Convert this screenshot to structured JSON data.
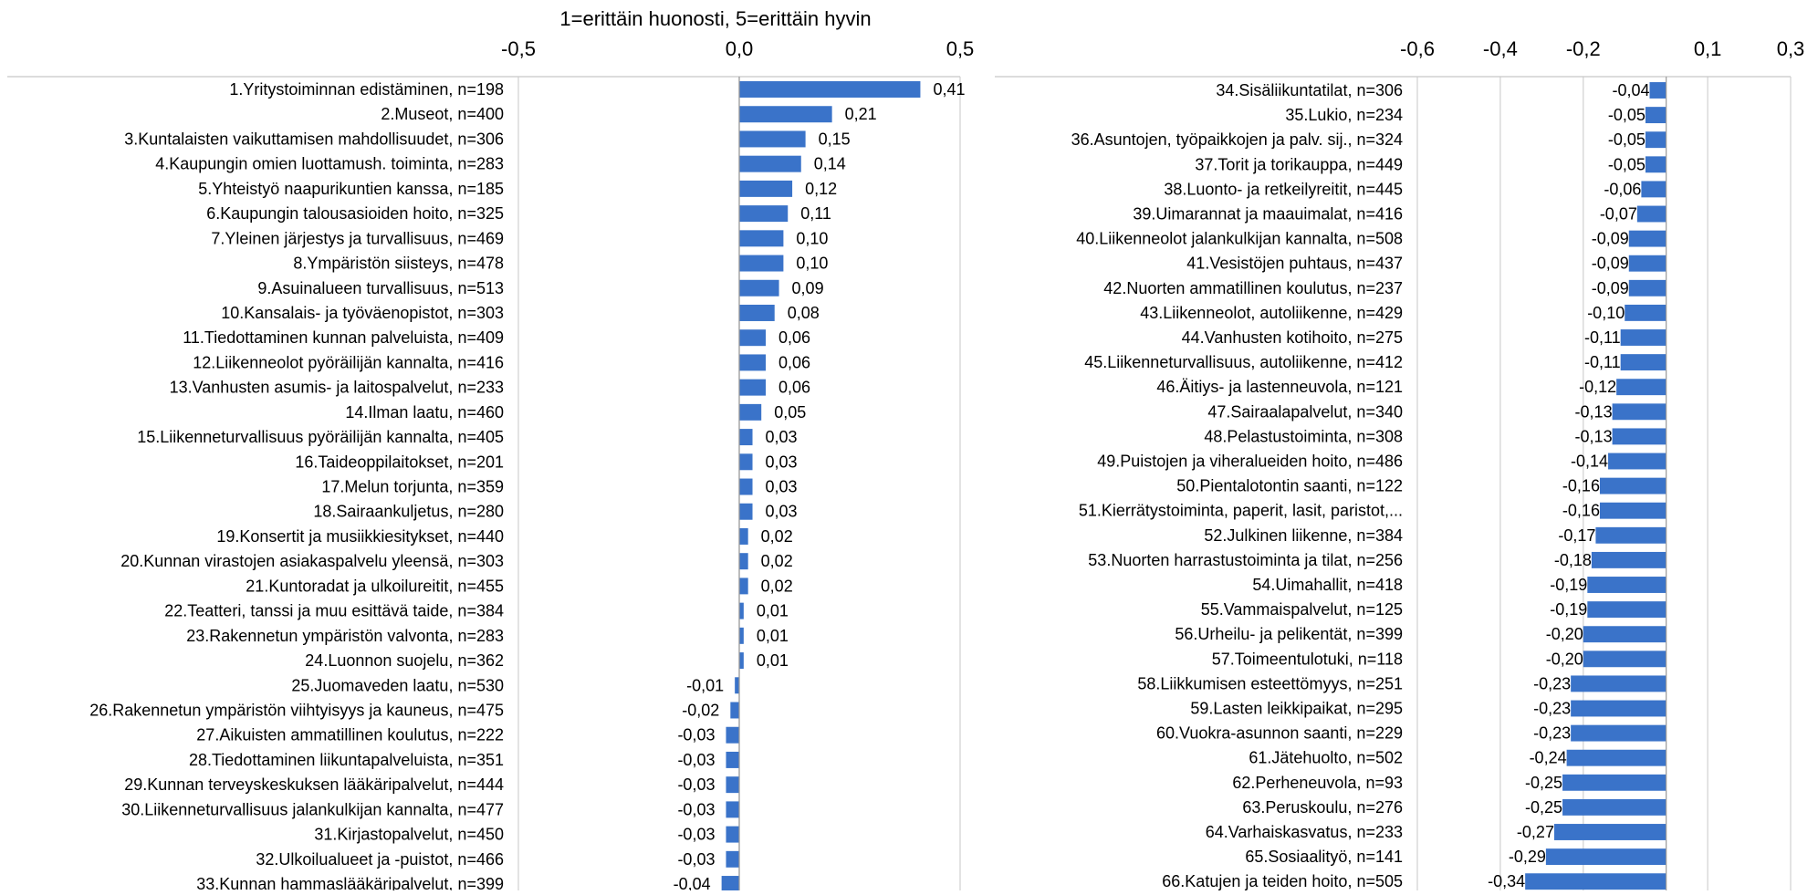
{
  "chart_data": [
    {
      "type": "bar",
      "orientation": "horizontal",
      "title": "1=erittäin huonosti, 5=erittäin hyvin",
      "xlim": [
        -0.5,
        0.5
      ],
      "ticks": [
        -0.5,
        0.0,
        0.5
      ],
      "tick_labels": [
        "-0,5",
        "0,0",
        "0,5"
      ],
      "grid": "vertical",
      "bar_color": "#3a73c9",
      "categories": [
        "1.Yritystoiminnan edistäminen, n=198",
        "2.Museot, n=400",
        "3.Kuntalaisten vaikuttamisen mahdollisuudet, n=306",
        "4.Kaupungin omien luottamush. toiminta, n=283",
        "5.Yhteistyö naapurikuntien kanssa, n=185",
        "6.Kaupungin talousasioiden hoito, n=325",
        "7.Yleinen järjestys ja turvallisuus, n=469",
        "8.Ympäristön siisteys, n=478",
        "9.Asuinalueen turvallisuus, n=513",
        "10.Kansalais- ja työväenopistot, n=303",
        "11.Tiedottaminen kunnan palveluista, n=409",
        "12.Liikenneolot pyöräilijän kannalta, n=416",
        "13.Vanhusten asumis- ja laitospalvelut, n=233",
        "14.Ilman laatu, n=460",
        "15.Liikenneturvallisuus pyöräilijän kannalta, n=405",
        "16.Taideoppilaitokset, n=201",
        "17.Melun torjunta, n=359",
        "18.Sairaankuljetus, n=280",
        "19.Konsertit ja musiikkiesitykset, n=440",
        "20.Kunnan virastojen asiakaspalvelu yleensä, n=303",
        "21.Kuntoradat ja ulkoilureitit, n=455",
        "22.Teatteri, tanssi ja muu esittävä taide, n=384",
        "23.Rakennetun ympäristön valvonta, n=283",
        "24.Luonnon suojelu, n=362",
        "25.Juomaveden laatu, n=530",
        "26.Rakennetun ympäristön viihtyisyys ja kauneus, n=475",
        "27.Aikuisten ammatillinen koulutus, n=222",
        "28.Tiedottaminen liikuntapalveluista, n=351",
        "29.Kunnan terveyskeskuksen lääkäripalvelut, n=444",
        "30.Liikenneturvallisuus jalankulkijan kannalta, n=477",
        "31.Kirjastopalvelut, n=450",
        "32.Ulkoilualueet ja -puistot, n=466",
        "33.Kunnan hammaslääkäripalvelut, n=399"
      ],
      "values": [
        0.41,
        0.21,
        0.15,
        0.14,
        0.12,
        0.11,
        0.1,
        0.1,
        0.09,
        0.08,
        0.06,
        0.06,
        0.06,
        0.05,
        0.03,
        0.03,
        0.03,
        0.03,
        0.02,
        0.02,
        0.02,
        0.01,
        0.01,
        0.01,
        -0.01,
        -0.02,
        -0.03,
        -0.03,
        -0.03,
        -0.03,
        -0.03,
        -0.03,
        -0.04
      ],
      "value_labels": [
        "0,41",
        "0,21",
        "0,15",
        "0,14",
        "0,12",
        "0,11",
        "0,10",
        "0,10",
        "0,09",
        "0,08",
        "0,06",
        "0,06",
        "0,06",
        "0,05",
        "0,03",
        "0,03",
        "0,03",
        "0,03",
        "0,02",
        "0,02",
        "0,02",
        "0,01",
        "0,01",
        "0,01",
        "-0,01",
        "-0,02",
        "-0,03",
        "-0,03",
        "-0,03",
        "-0,03",
        "-0,03",
        "-0,03",
        "-0,04"
      ]
    },
    {
      "type": "bar",
      "orientation": "horizontal",
      "title": "",
      "xlim": [
        -0.6,
        0.3
      ],
      "ticks": [
        -0.6,
        -0.4,
        -0.2,
        0.1,
        0.3
      ],
      "tick_labels": [
        "-0,6",
        "-0,4",
        "-0,2",
        "0,1",
        "0,3"
      ],
      "grid": "vertical",
      "bar_color": "#3a73c9",
      "categories": [
        "34.Sisäliikuntatilat, n=306",
        "35.Lukio, n=234",
        "36.Asuntojen, työpaikkojen ja palv. sij., n=324",
        "37.Torit ja torikauppa, n=449",
        "38.Luonto- ja retkeilyreitit, n=445",
        "39.Uimarannat ja maauimalat, n=416",
        "40.Liikenneolot jalankulkijan kannalta, n=508",
        "41.Vesistöjen puhtaus, n=437",
        "42.Nuorten ammatillinen koulutus, n=237",
        "43.Liikenneolot, autoliikenne, n=429",
        "44.Vanhusten kotihoito, n=275",
        "45.Liikenneturvallisuus, autoliikenne, n=412",
        "46.Äitiys- ja lastenneuvola, n=121",
        "47.Sairaalapalvelut, n=340",
        "48.Pelastustoiminta, n=308",
        "49.Puistojen ja viheralueiden hoito, n=486",
        "50.Pientalotontin saanti, n=122",
        "51.Kierrätystoiminta, paperit, lasit, paristot,...",
        "52.Julkinen liikenne, n=384",
        "53.Nuorten harrastustoiminta ja tilat, n=256",
        "54.Uimahallit, n=418",
        "55.Vammaispalvelut, n=125",
        "56.Urheilu- ja pelikentät, n=399",
        "57.Toimeentulotuki, n=118",
        "58.Liikkumisen esteettömyys, n=251",
        "59.Lasten leikkipaikat, n=295",
        "60.Vuokra-asunnon saanti, n=229",
        "61.Jätehuolto, n=502",
        "62.Perheneuvola, n=93",
        "63.Peruskoulu, n=276",
        "64.Varhaiskasvatus, n=233",
        "65.Sosiaalityö, n=141",
        "66.Katujen ja teiden hoito, n=505"
      ],
      "values": [
        -0.04,
        -0.05,
        -0.05,
        -0.05,
        -0.06,
        -0.07,
        -0.09,
        -0.09,
        -0.09,
        -0.1,
        -0.11,
        -0.11,
        -0.12,
        -0.13,
        -0.13,
        -0.14,
        -0.16,
        -0.16,
        -0.17,
        -0.18,
        -0.19,
        -0.19,
        -0.2,
        -0.2,
        -0.23,
        -0.23,
        -0.23,
        -0.24,
        -0.25,
        -0.25,
        -0.27,
        -0.29,
        -0.34
      ],
      "value_labels": [
        "-0,04",
        "-0,05",
        "-0,05",
        "-0,05",
        "-0,06",
        "-0,07",
        "-0,09",
        "-0,09",
        "-0,09",
        "-0,10",
        "-0,11",
        "-0,11",
        "-0,12",
        "-0,13",
        "-0,13",
        "-0,14",
        "-0,16",
        "-0,16",
        "-0,17",
        "-0,18",
        "-0,19",
        "-0,19",
        "-0,20",
        "-0,20",
        "-0,23",
        "-0,23",
        "-0,23",
        "-0,24",
        "-0,25",
        "-0,25",
        "-0,27",
        "-0,29",
        "-0,34"
      ]
    }
  ]
}
